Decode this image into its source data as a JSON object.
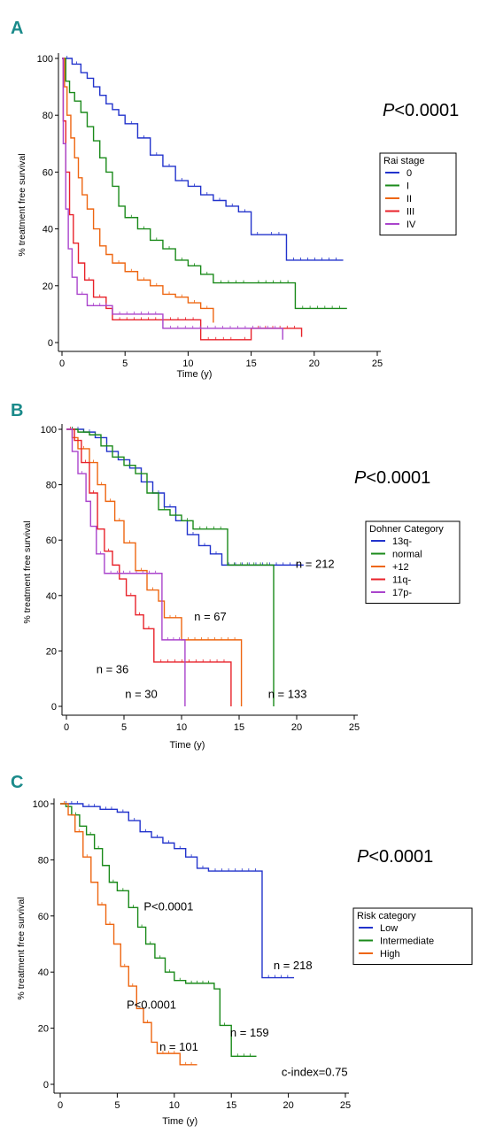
{
  "chart_data": [
    {
      "type": "line",
      "panel_label": "A",
      "ylabel": "% treatment free survival",
      "xlabel": "Time (y)",
      "xlim": [
        0,
        25
      ],
      "ylim": [
        0,
        100
      ],
      "xticks": [
        "0",
        "5",
        "10",
        "15",
        "20",
        "25"
      ],
      "yticks": [
        "0",
        "20",
        "40",
        "60",
        "80",
        "100"
      ],
      "pvalue": {
        "italic": "P",
        "rest": "<0.0001"
      },
      "legend": {
        "title": "Rai stage",
        "placement": "right"
      },
      "annotations": [],
      "series": [
        {
          "name": "0",
          "color": "#2233cc",
          "points": [
            [
              0,
              100
            ],
            [
              0.8,
              98
            ],
            [
              1.5,
              95
            ],
            [
              2,
              93
            ],
            [
              2.5,
              90
            ],
            [
              3,
              87
            ],
            [
              3.5,
              84
            ],
            [
              4,
              82
            ],
            [
              4.5,
              80
            ],
            [
              5,
              77
            ],
            [
              6,
              72
            ],
            [
              7,
              66
            ],
            [
              8,
              62
            ],
            [
              9,
              57
            ],
            [
              10,
              55
            ],
            [
              11,
              52
            ],
            [
              12,
              50
            ],
            [
              13,
              48
            ],
            [
              14,
              46
            ],
            [
              15,
              38
            ],
            [
              16,
              38
            ],
            [
              17.8,
              29
            ],
            [
              22.3,
              29
            ]
          ]
        },
        {
          "name": "I",
          "color": "#1a8a1a",
          "points": [
            [
              0,
              100
            ],
            [
              0.3,
              92
            ],
            [
              0.6,
              88
            ],
            [
              1,
              85
            ],
            [
              1.5,
              81
            ],
            [
              2,
              76
            ],
            [
              2.5,
              71
            ],
            [
              3,
              65
            ],
            [
              3.5,
              60
            ],
            [
              4,
              55
            ],
            [
              4.5,
              48
            ],
            [
              5,
              44
            ],
            [
              6,
              40
            ],
            [
              7,
              36
            ],
            [
              8,
              33
            ],
            [
              9,
              29
            ],
            [
              10,
              27
            ],
            [
              11,
              24
            ],
            [
              12,
              21
            ],
            [
              15,
              21
            ],
            [
              18.5,
              21
            ],
            [
              18.5,
              12
            ],
            [
              22.6,
              12
            ]
          ]
        },
        {
          "name": "II",
          "color": "#ee6611",
          "points": [
            [
              0,
              100
            ],
            [
              0.2,
              90
            ],
            [
              0.4,
              80
            ],
            [
              0.7,
              72
            ],
            [
              1,
              65
            ],
            [
              1.3,
              58
            ],
            [
              1.6,
              52
            ],
            [
              2,
              47
            ],
            [
              2.5,
              40
            ],
            [
              3,
              34
            ],
            [
              3.5,
              31
            ],
            [
              4,
              28
            ],
            [
              5,
              25
            ],
            [
              6,
              22
            ],
            [
              7,
              20
            ],
            [
              8,
              17
            ],
            [
              9,
              16
            ],
            [
              10,
              14
            ],
            [
              11,
              12
            ],
            [
              12,
              9
            ],
            [
              12,
              7
            ]
          ]
        },
        {
          "name": "III",
          "color": "#e8222a",
          "points": [
            [
              0,
              100
            ],
            [
              0.1,
              78
            ],
            [
              0.3,
              60
            ],
            [
              0.6,
              45
            ],
            [
              0.9,
              35
            ],
            [
              1.3,
              28
            ],
            [
              1.8,
              22
            ],
            [
              2.5,
              16
            ],
            [
              3.5,
              12
            ],
            [
              4,
              8
            ],
            [
              8,
              8
            ],
            [
              11,
              8
            ],
            [
              11,
              1
            ],
            [
              14,
              1
            ],
            [
              15,
              5
            ],
            [
              19,
              5
            ],
            [
              19,
              2
            ]
          ]
        },
        {
          "name": "IV",
          "color": "#aa44cc",
          "points": [
            [
              0,
              100
            ],
            [
              0.1,
              70
            ],
            [
              0.3,
              47
            ],
            [
              0.5,
              33
            ],
            [
              0.8,
              23
            ],
            [
              1.2,
              17
            ],
            [
              2,
              13
            ],
            [
              4,
              10
            ],
            [
              8,
              10
            ],
            [
              8,
              5
            ],
            [
              17.5,
              5
            ],
            [
              17.5,
              1
            ]
          ]
        }
      ]
    },
    {
      "type": "line",
      "panel_label": "B",
      "ylabel": "% treatment free survival",
      "xlabel": "Time (y)",
      "xlim": [
        0,
        25
      ],
      "ylim": [
        0,
        100
      ],
      "xticks": [
        "0",
        "5",
        "10",
        "15",
        "20",
        "25"
      ],
      "yticks": [
        "0",
        "20",
        "40",
        "60",
        "80",
        "100"
      ],
      "pvalue": {
        "italic": "P",
        "rest": "<0.0001"
      },
      "legend": {
        "title": "Dohner Category",
        "placement": "right"
      },
      "annotations": [
        {
          "text": "n = 212",
          "x": 21.6,
          "y": 50
        },
        {
          "text": "n = 67",
          "x": 12.5,
          "y": 31
        },
        {
          "text": "n = 36",
          "x": 4,
          "y": 12
        },
        {
          "text": "n = 30",
          "x": 6.5,
          "y": 3
        },
        {
          "text": "n = 133",
          "x": 19.2,
          "y": 3
        }
      ],
      "series": [
        {
          "name": "13q-",
          "color": "#2233cc",
          "points": [
            [
              0,
              100
            ],
            [
              1.5,
              99
            ],
            [
              2.5,
              97
            ],
            [
              3.5,
              92
            ],
            [
              4.5,
              89
            ],
            [
              5.5,
              86
            ],
            [
              6.5,
              81
            ],
            [
              7.5,
              77
            ],
            [
              8.5,
              72
            ],
            [
              9.5,
              67
            ],
            [
              10.5,
              62
            ],
            [
              11.5,
              58
            ],
            [
              12.5,
              55
            ],
            [
              13.5,
              51
            ],
            [
              20.6,
              51
            ]
          ]
        },
        {
          "name": "normal",
          "color": "#1a8a1a",
          "points": [
            [
              0,
              100
            ],
            [
              1,
              99
            ],
            [
              2,
              98
            ],
            [
              3,
              94
            ],
            [
              4,
              90
            ],
            [
              5,
              87
            ],
            [
              6,
              84
            ],
            [
              7,
              77
            ],
            [
              8,
              71
            ],
            [
              9,
              69
            ],
            [
              10,
              67
            ],
            [
              11,
              64
            ],
            [
              14,
              63
            ],
            [
              14,
              51
            ],
            [
              18,
              51
            ],
            [
              18,
              0
            ]
          ]
        },
        {
          "name": "+12",
          "color": "#ee6611",
          "points": [
            [
              0,
              100
            ],
            [
              0.5,
              97
            ],
            [
              1,
              93
            ],
            [
              2,
              88
            ],
            [
              2.7,
              80
            ],
            [
              3.4,
              74
            ],
            [
              4.2,
              67
            ],
            [
              5,
              59
            ],
            [
              6,
              49
            ],
            [
              7,
              42
            ],
            [
              8,
              38
            ],
            [
              8.5,
              32
            ],
            [
              10,
              32
            ],
            [
              10,
              24
            ],
            [
              15.2,
              24
            ],
            [
              15.2,
              0
            ]
          ]
        },
        {
          "name": "11q-",
          "color": "#e8222a",
          "points": [
            [
              0,
              100
            ],
            [
              0.7,
              96
            ],
            [
              1.3,
              88
            ],
            [
              2,
              77
            ],
            [
              2.7,
              64
            ],
            [
              3.3,
              56
            ],
            [
              4,
              51
            ],
            [
              4.6,
              46
            ],
            [
              5.2,
              40
            ],
            [
              6,
              33
            ],
            [
              6.7,
              28
            ],
            [
              7.6,
              16
            ],
            [
              14.3,
              16
            ],
            [
              14.3,
              0
            ]
          ]
        },
        {
          "name": "17p-",
          "color": "#aa44cc",
          "points": [
            [
              0,
              100
            ],
            [
              0.5,
              92
            ],
            [
              1,
              84
            ],
            [
              1.7,
              74
            ],
            [
              2.1,
              65
            ],
            [
              2.6,
              55
            ],
            [
              3.3,
              48
            ],
            [
              8.3,
              48
            ],
            [
              8.3,
              24
            ],
            [
              10.3,
              24
            ],
            [
              10.3,
              0
            ]
          ]
        }
      ]
    },
    {
      "type": "line",
      "panel_label": "C",
      "ylabel": "% treatment free survival",
      "xlabel": "Time (y)",
      "xlim": [
        0,
        25
      ],
      "ylim": [
        0,
        100
      ],
      "xticks": [
        "0",
        "5",
        "10",
        "15",
        "20",
        "25"
      ],
      "yticks": [
        "0",
        "20",
        "40",
        "60",
        "80",
        "100"
      ],
      "pvalue": {
        "italic": "P",
        "rest": "<0.0001"
      },
      "legend": {
        "title": "Risk category",
        "placement": "right"
      },
      "annotations": [
        {
          "text": "P<0.0001",
          "x": 9.5,
          "y": 62
        },
        {
          "text": "P<0.0001",
          "x": 8,
          "y": 27
        },
        {
          "text": "n = 218",
          "x": 20.4,
          "y": 41
        },
        {
          "text": "n = 159",
          "x": 16.6,
          "y": 17
        },
        {
          "text": "n = 101",
          "x": 10.4,
          "y": 12
        },
        {
          "text": "c-index=0.75",
          "x": 22.3,
          "y": 3
        }
      ],
      "series": [
        {
          "name": "Low",
          "color": "#2233cc",
          "points": [
            [
              0,
              100
            ],
            [
              2,
              99
            ],
            [
              3.5,
              98
            ],
            [
              5,
              97
            ],
            [
              6,
              94
            ],
            [
              7,
              90
            ],
            [
              8,
              88
            ],
            [
              9,
              86
            ],
            [
              10,
              84
            ],
            [
              11,
              81
            ],
            [
              12,
              77
            ],
            [
              13,
              76
            ],
            [
              17.7,
              76
            ],
            [
              17.7,
              38
            ],
            [
              20.5,
              38
            ]
          ]
        },
        {
          "name": "Intermediate",
          "color": "#1a8a1a",
          "points": [
            [
              0,
              100
            ],
            [
              0.5,
              99
            ],
            [
              1,
              96
            ],
            [
              1.7,
              92
            ],
            [
              2.3,
              89
            ],
            [
              3,
              84
            ],
            [
              3.7,
              78
            ],
            [
              4.3,
              72
            ],
            [
              5,
              69
            ],
            [
              6,
              63
            ],
            [
              6.8,
              56
            ],
            [
              7.5,
              50
            ],
            [
              8.3,
              45
            ],
            [
              9.2,
              40
            ],
            [
              10,
              37
            ],
            [
              11,
              36
            ],
            [
              13.5,
              34
            ],
            [
              14,
              21
            ],
            [
              14.8,
              21
            ],
            [
              15,
              10
            ],
            [
              17.2,
              10
            ]
          ]
        },
        {
          "name": "High",
          "color": "#ee6611",
          "points": [
            [
              0,
              100
            ],
            [
              0.7,
              96
            ],
            [
              1.3,
              90
            ],
            [
              2,
              81
            ],
            [
              2.7,
              72
            ],
            [
              3.3,
              64
            ],
            [
              4,
              57
            ],
            [
              4.7,
              50
            ],
            [
              5.3,
              42
            ],
            [
              6,
              35
            ],
            [
              6.7,
              27
            ],
            [
              7.3,
              22
            ],
            [
              8,
              15
            ],
            [
              8.5,
              11
            ],
            [
              10.5,
              11
            ],
            [
              10.5,
              7
            ],
            [
              12,
              7
            ]
          ]
        }
      ]
    }
  ]
}
